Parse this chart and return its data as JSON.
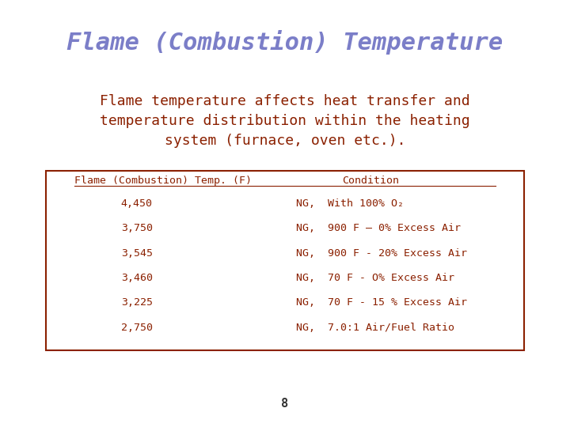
{
  "title": "Flame (Combustion) Temperature",
  "title_color": "#7B7EC8",
  "subtitle": "Flame temperature affects heat transfer and\ntemperature distribution within the heating\nsystem (furnace, oven etc.).",
  "subtitle_color": "#8B2000",
  "table_header_left": "Flame (Combustion) Temp. (F)",
  "table_header_right": "Condition",
  "table_color": "#8B2000",
  "table_border_color": "#8B2000",
  "temps": [
    "4,450",
    "3,750",
    "3,545",
    "3,460",
    "3,225",
    "2,750"
  ],
  "conditions": [
    "NG,  With 100% O₂",
    "NG,  900 F – 0% Excess Air",
    "NG,  900 F - 20% Excess Air",
    "NG,  70 F - O% Excess Air",
    "NG,  70 F - 15 % Excess Air",
    "NG,  7.0:1 Air/Fuel Ratio"
  ],
  "page_number": "8",
  "background_color": "#FFFFFF"
}
